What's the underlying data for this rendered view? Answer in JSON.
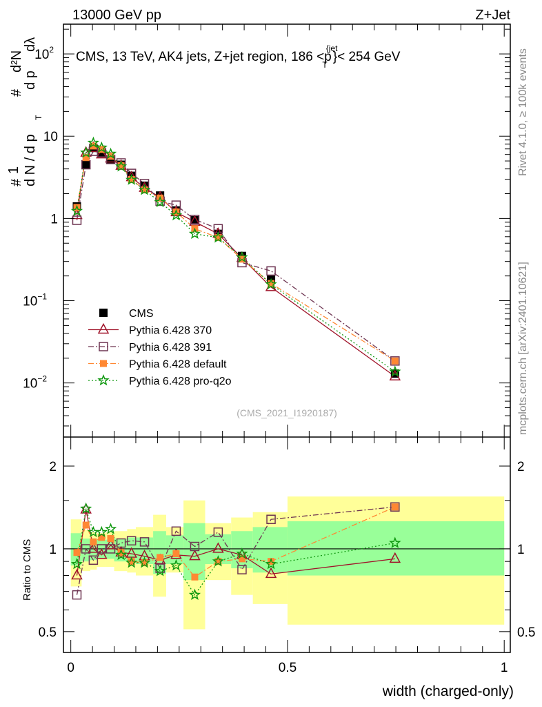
{
  "header": {
    "left": "13000 GeV pp",
    "right": "Z+Jet"
  },
  "side": {
    "rivet": "Rivet 4.1.0, ≥ 100k events",
    "mcplots": "mcplots.cern.ch [arXiv:2401.10621]"
  },
  "chart_data": [
    {
      "type": "scatter",
      "title": "CMS, 13 TeV, AK4 jets, Z+jet region, 186 <p_T^{jet}< 254 GeV",
      "title_parts": {
        "main": "CMS, 13 TeV, AK4 jets, Z+jet region, 186 <p",
        "sup": "{jet",
        "sub": "T",
        "tail": "}< 254 GeV"
      },
      "ylabel": "1/N dN/dp_T dλ",
      "ylabel_parts": {
        "num1": "1",
        "den1": "d N / d p",
        "num2": "d²N",
        "den2": "d p",
        "den3": "dλ",
        "sub": "T",
        "hash": "#"
      },
      "yscale": "log",
      "ylim": [
        0.0022,
        230
      ],
      "yticks": [
        {
          "v": 100,
          "label": "10",
          "exp": "2"
        },
        {
          "v": 10,
          "label": "10",
          "exp": ""
        },
        {
          "v": 1,
          "label": "1",
          "exp": ""
        },
        {
          "v": 0.1,
          "label": "10",
          "exp": "−1"
        },
        {
          "v": 0.01,
          "label": "10",
          "exp": "−2"
        }
      ],
      "watermark": "(CMS_2021_I1920187)",
      "legend_position": "center-left",
      "x": [
        0.014,
        0.035,
        0.052,
        0.071,
        0.092,
        0.116,
        0.14,
        0.17,
        0.206,
        0.243,
        0.286,
        0.34,
        0.395,
        0.462,
        0.748
      ],
      "series": [
        {
          "name": "CMS",
          "color": "#000000",
          "marker": "filled-square",
          "line": "none",
          "values": [
            1.4,
            4.5,
            7.2,
            6.3,
            5.2,
            4.5,
            3.3,
            2.5,
            1.9,
            1.25,
            0.95,
            0.65,
            0.35,
            0.18,
            0.013
          ]
        },
        {
          "name": "Pythia 6.428 370",
          "color": "#a0142a",
          "marker": "open-triangle",
          "line": "solid",
          "values": [
            1.1,
            6.3,
            7.2,
            6.0,
            5.35,
            4.37,
            3.17,
            2.35,
            1.81,
            1.19,
            0.91,
            0.65,
            0.33,
            0.146,
            0.012
          ]
        },
        {
          "name": "Pythia 6.428 391",
          "color": "#6e3552",
          "marker": "open-square",
          "line": "dashdot",
          "values": [
            0.95,
            4.5,
            6.55,
            6.3,
            5.2,
            4.73,
            3.53,
            2.65,
            1.62,
            1.45,
            0.97,
            0.75,
            0.29,
            0.23,
            0.0185
          ]
        },
        {
          "name": "Pythia 6.428 default",
          "color": "#ff8833",
          "marker": "filled-square-small",
          "line": "dashdot",
          "values": [
            1.36,
            5.5,
            7.6,
            6.9,
            5.7,
            4.37,
            2.97,
            2.22,
            1.77,
            1.2,
            0.75,
            0.585,
            0.32,
            0.162,
            0.0185
          ]
        },
        {
          "name": "Pythia 6.428 pro-q2o",
          "color": "#119911",
          "marker": "star",
          "line": "dotted",
          "values": [
            1.23,
            6.3,
            8.3,
            7.25,
            6.1,
            4.28,
            2.94,
            2.22,
            1.58,
            1.09,
            0.65,
            0.585,
            0.336,
            0.158,
            0.0137
          ]
        }
      ]
    },
    {
      "type": "scatter",
      "ylabel": "Ratio to CMS",
      "xlabel": "width (charged-only)",
      "yscale": "log",
      "ylim": [
        0.42,
        2.55
      ],
      "yticks": [
        {
          "v": 2,
          "label": "2"
        },
        {
          "v": 1,
          "label": "1"
        },
        {
          "v": 0.5,
          "label": "0.5"
        }
      ],
      "xticks": [
        {
          "v": 0,
          "label": "0"
        },
        {
          "v": 0.5,
          "label": "0.5"
        },
        {
          "v": 1,
          "label": "1"
        }
      ],
      "xlim": [
        -0.017,
        1.014
      ],
      "bin_edges": [
        0,
        0.025,
        0.045,
        0.06,
        0.08,
        0.1,
        0.13,
        0.15,
        0.19,
        0.22,
        0.26,
        0.31,
        0.37,
        0.42,
        0.5,
        1.0
      ],
      "band_total": {
        "lo": [
          0.73,
          0.83,
          0.84,
          0.86,
          0.86,
          0.83,
          0.82,
          0.8,
          0.67,
          0.82,
          0.51,
          0.77,
          0.68,
          0.63,
          0.53
        ],
        "hi": [
          1.28,
          1.17,
          1.15,
          1.14,
          1.15,
          1.16,
          1.18,
          1.2,
          1.33,
          1.2,
          1.5,
          1.24,
          1.3,
          1.36,
          1.55
        ]
      },
      "band_stat": {
        "lo": [
          0.87,
          0.9,
          0.91,
          0.92,
          0.92,
          0.9,
          0.9,
          0.88,
          0.81,
          0.88,
          0.77,
          0.88,
          0.85,
          0.82,
          0.8
        ],
        "hi": [
          1.14,
          1.09,
          1.08,
          1.08,
          1.08,
          1.09,
          1.1,
          1.1,
          1.16,
          1.12,
          1.24,
          1.13,
          1.16,
          1.2,
          1.26
        ]
      },
      "x": [
        0.014,
        0.035,
        0.052,
        0.071,
        0.092,
        0.116,
        0.14,
        0.17,
        0.206,
        0.243,
        0.286,
        0.34,
        0.395,
        0.462,
        0.748
      ],
      "series": [
        {
          "name": "Pythia 6.428 370",
          "values": [
            0.8,
            1.39,
            1.0,
            0.95,
            1.03,
            0.97,
            0.96,
            0.94,
            0.91,
            0.95,
            0.94,
            1.0,
            0.95,
            0.81,
            0.92
          ]
        },
        {
          "name": "Pythia 6.428 391",
          "values": [
            0.68,
            1.0,
            0.91,
            1.0,
            1.0,
            1.05,
            1.07,
            1.06,
            0.85,
            1.16,
            1.02,
            1.15,
            0.84,
            1.28,
            1.42
          ]
        },
        {
          "name": "Pythia 6.428 default",
          "values": [
            0.97,
            1.22,
            1.06,
            1.1,
            1.09,
            0.97,
            0.9,
            0.89,
            0.93,
            0.96,
            0.79,
            0.9,
            0.92,
            0.9,
            1.42
          ]
        },
        {
          "name": "Pythia 6.428 pro-q2o",
          "values": [
            0.88,
            1.4,
            1.15,
            1.15,
            1.18,
            0.95,
            0.89,
            0.89,
            0.83,
            0.87,
            0.68,
            0.9,
            0.96,
            0.88,
            1.05
          ]
        }
      ]
    }
  ]
}
